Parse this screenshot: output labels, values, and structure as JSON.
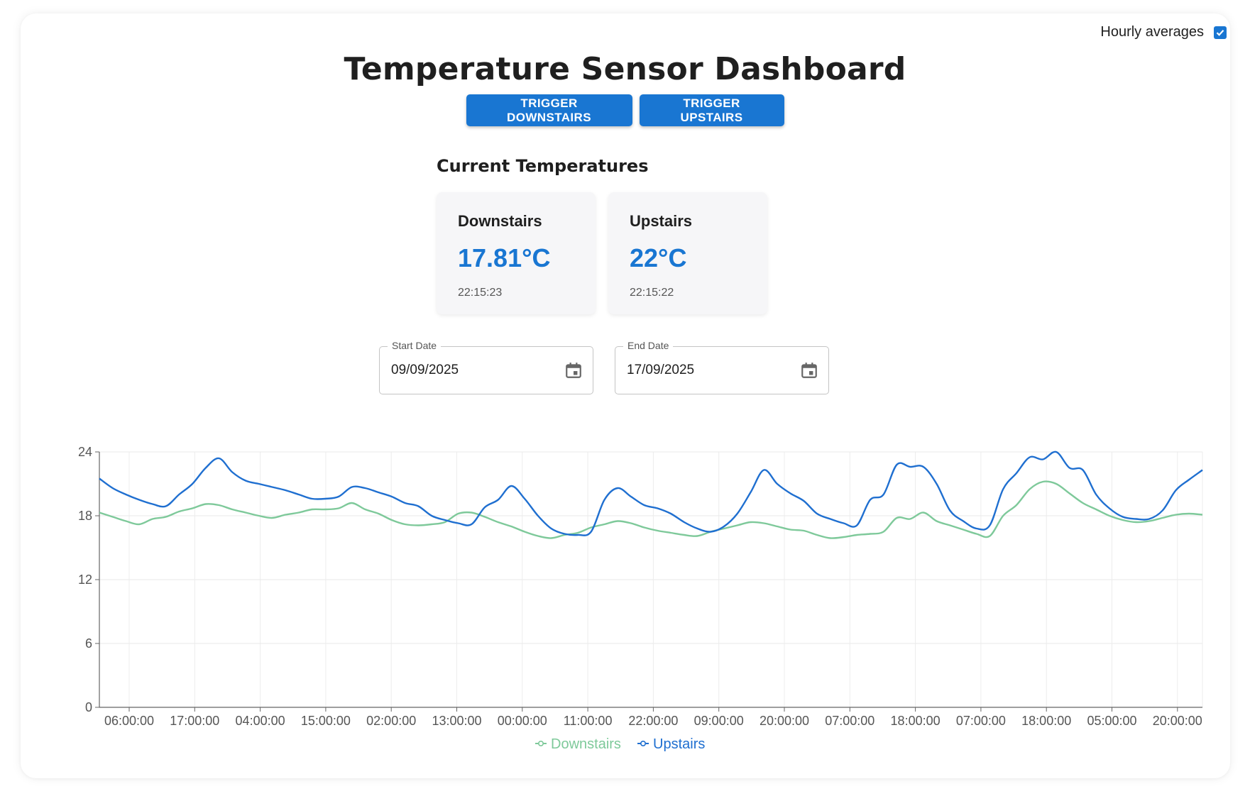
{
  "header": {
    "title": "Temperature Sensor Dashboard",
    "hourly_label": "Hourly averages",
    "hourly_checked": true
  },
  "buttons": {
    "trigger_downstairs": "TRIGGER DOWNSTAIRS",
    "trigger_upstairs": "TRIGGER UPSTAIRS"
  },
  "current": {
    "section_title": "Current Temperatures",
    "downstairs": {
      "name": "Downstairs",
      "value": "17.81°C",
      "time": "22:15:23"
    },
    "upstairs": {
      "name": "Upstairs",
      "value": "22°C",
      "time": "22:15:22"
    }
  },
  "dates": {
    "start_label": "Start Date",
    "start_value": "09/09/2025",
    "end_label": "End Date",
    "end_value": "17/09/2025",
    "icon": "calendar-icon"
  },
  "colors": {
    "accent": "#1976d2",
    "downstairs": "#7ec99a",
    "upstairs": "#1f6fd0"
  },
  "chart_data": {
    "type": "line",
    "ylim": [
      0,
      24
    ],
    "yticks": [
      "0",
      "6",
      "12",
      "18",
      "24"
    ],
    "xticks": [
      "06:00:00",
      "17:00:00",
      "04:00:00",
      "15:00:00",
      "02:00:00",
      "13:00:00",
      "00:00:00",
      "11:00:00",
      "22:00:00",
      "09:00:00",
      "20:00:00",
      "07:00:00",
      "18:00:00",
      "07:00:00",
      "18:00:00",
      "05:00:00",
      "20:00:00"
    ],
    "legend_position": "bottom-center",
    "grid": true,
    "series": [
      {
        "name": "Downstairs",
        "color": "#7ec99a",
        "values": [
          18.3,
          17.9,
          17.5,
          17.2,
          17.7,
          17.9,
          18.4,
          18.7,
          19.1,
          19.0,
          18.6,
          18.3,
          18.0,
          17.8,
          18.1,
          18.3,
          18.6,
          18.6,
          18.7,
          19.2,
          18.6,
          18.2,
          17.6,
          17.2,
          17.1,
          17.2,
          17.4,
          18.2,
          18.3,
          17.9,
          17.4,
          17.0,
          16.5,
          16.1,
          15.9,
          16.2,
          16.4,
          16.9,
          17.2,
          17.5,
          17.3,
          16.9,
          16.6,
          16.4,
          16.2,
          16.1,
          16.5,
          16.8,
          17.1,
          17.4,
          17.3,
          17.0,
          16.7,
          16.6,
          16.2,
          15.9,
          16.0,
          16.2,
          16.3,
          16.5,
          17.8,
          17.7,
          18.3,
          17.5,
          17.1,
          16.7,
          16.3,
          16.1,
          18.0,
          19.0,
          20.5,
          21.2,
          21.0,
          20.1,
          19.2,
          18.6,
          18.0,
          17.6,
          17.4,
          17.5,
          17.8,
          18.1,
          18.2,
          18.1
        ]
      },
      {
        "name": "Upstairs",
        "color": "#1f6fd0",
        "values": [
          21.5,
          20.6,
          20.0,
          19.5,
          19.1,
          18.9,
          20.0,
          21.0,
          22.5,
          23.4,
          22.1,
          21.3,
          21.0,
          20.7,
          20.4,
          20.0,
          19.6,
          19.6,
          19.8,
          20.7,
          20.6,
          20.2,
          19.8,
          19.2,
          18.9,
          18.0,
          17.6,
          17.3,
          17.2,
          18.8,
          19.5,
          20.8,
          19.6,
          18.0,
          16.8,
          16.3,
          16.2,
          16.5,
          19.5,
          20.6,
          19.8,
          19.0,
          18.7,
          18.2,
          17.4,
          16.8,
          16.5,
          17.0,
          18.2,
          20.2,
          22.3,
          21.0,
          20.1,
          19.4,
          18.2,
          17.7,
          17.3,
          17.1,
          19.5,
          20.0,
          22.8,
          22.6,
          22.6,
          21.0,
          18.5,
          17.5,
          16.8,
          17.1,
          20.5,
          22.0,
          23.5,
          23.3,
          24.0,
          22.5,
          22.3,
          20.0,
          18.7,
          17.9,
          17.7,
          17.7,
          18.5,
          20.4,
          21.4,
          22.3
        ]
      }
    ]
  }
}
